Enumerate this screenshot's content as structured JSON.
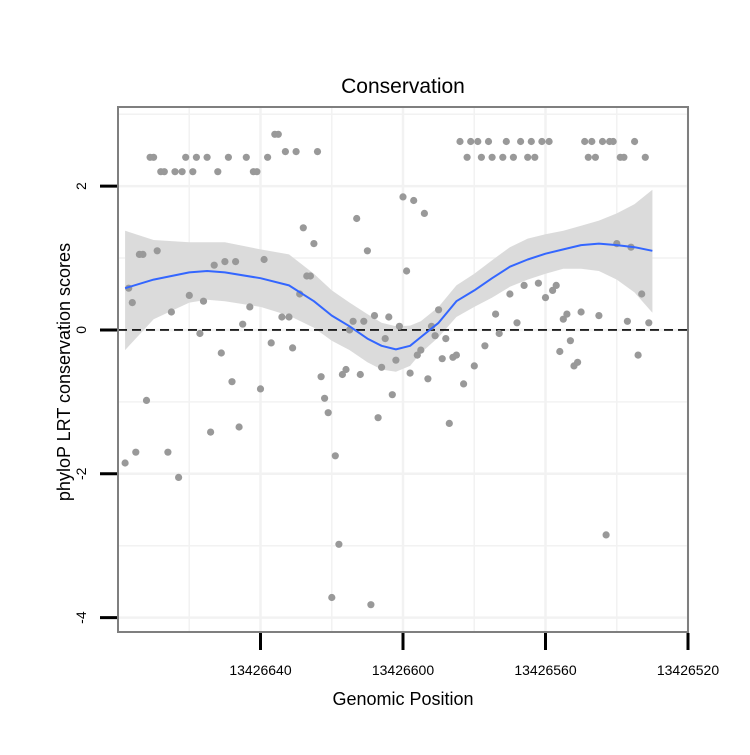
{
  "chart_data": {
    "type": "scatter",
    "title": "Conservation",
    "xlabel": "Genomic Position",
    "ylabel": "phyloP LRT conservation scores",
    "x_reversed": true,
    "xlim": [
      13426520,
      13426680
    ],
    "ylim": [
      -4.2,
      3.1
    ],
    "x_ticks": [
      13426640,
      13426600,
      13426560,
      13426520
    ],
    "x_tick_labels": [
      "13426640",
      "13426600",
      "13426560",
      "13426520"
    ],
    "y_ticks": [
      -4,
      -2,
      0,
      2
    ],
    "y_tick_labels": [
      "-4",
      "-2",
      "0",
      "2"
    ],
    "grid": true,
    "reference_line": {
      "y": 0,
      "style": "dashed",
      "color": "#000000"
    },
    "colors": {
      "points": "#999999",
      "smooth": "#3366ff",
      "ribbon": "#d9d9d9",
      "panel_border": "#7f7f7f",
      "grid": "#f2f2f2"
    },
    "series": [
      {
        "name": "phyloP LRT scores",
        "type": "scatter",
        "points": [
          [
            13426678,
            -1.85
          ],
          [
            13426677,
            0.58
          ],
          [
            13426676,
            0.38
          ],
          [
            13426675,
            -1.7
          ],
          [
            13426674,
            1.05
          ],
          [
            13426673,
            1.05
          ],
          [
            13426672,
            -0.98
          ],
          [
            13426671,
            2.4
          ],
          [
            13426670,
            2.4
          ],
          [
            13426669,
            1.1
          ],
          [
            13426668,
            2.2
          ],
          [
            13426667,
            2.2
          ],
          [
            13426666,
            -1.7
          ],
          [
            13426665,
            0.25
          ],
          [
            13426664,
            2.2
          ],
          [
            13426663,
            -2.05
          ],
          [
            13426662,
            2.2
          ],
          [
            13426661,
            2.4
          ],
          [
            13426660,
            0.48
          ],
          [
            13426659,
            2.2
          ],
          [
            13426658,
            2.4
          ],
          [
            13426657,
            -0.05
          ],
          [
            13426656,
            0.4
          ],
          [
            13426655,
            2.4
          ],
          [
            13426654,
            -1.42
          ],
          [
            13426653,
            0.9
          ],
          [
            13426652,
            2.2
          ],
          [
            13426651,
            -0.32
          ],
          [
            13426650,
            0.95
          ],
          [
            13426649,
            2.4
          ],
          [
            13426648,
            -0.72
          ],
          [
            13426647,
            0.95
          ],
          [
            13426646,
            -1.35
          ],
          [
            13426645,
            0.08
          ],
          [
            13426644,
            2.4
          ],
          [
            13426643,
            0.32
          ],
          [
            13426642,
            2.2
          ],
          [
            13426641,
            2.2
          ],
          [
            13426640,
            -0.82
          ],
          [
            13426639,
            0.98
          ],
          [
            13426638,
            2.4
          ],
          [
            13426637,
            -0.18
          ],
          [
            13426636,
            2.72
          ],
          [
            13426635,
            2.72
          ],
          [
            13426634,
            0.18
          ],
          [
            13426633,
            2.48
          ],
          [
            13426632,
            0.18
          ],
          [
            13426631,
            -0.25
          ],
          [
            13426630,
            2.48
          ],
          [
            13426629,
            0.5
          ],
          [
            13426628,
            1.42
          ],
          [
            13426627,
            0.75
          ],
          [
            13426626,
            0.75
          ],
          [
            13426625,
            1.2
          ],
          [
            13426624,
            2.48
          ],
          [
            13426623,
            -0.65
          ],
          [
            13426622,
            -0.95
          ],
          [
            13426621,
            -1.15
          ],
          [
            13426620,
            -3.72
          ],
          [
            13426619,
            -1.75
          ],
          [
            13426618,
            -2.98
          ],
          [
            13426617,
            -0.62
          ],
          [
            13426616,
            -0.55
          ],
          [
            13426615,
            0.0
          ],
          [
            13426614,
            0.12
          ],
          [
            13426613,
            1.55
          ],
          [
            13426612,
            -0.62
          ],
          [
            13426611,
            0.12
          ],
          [
            13426610,
            1.1
          ],
          [
            13426609,
            -3.82
          ],
          [
            13426608,
            0.2
          ],
          [
            13426607,
            -1.22
          ],
          [
            13426606,
            -0.52
          ],
          [
            13426605,
            -0.12
          ],
          [
            13426604,
            0.18
          ],
          [
            13426603,
            -0.9
          ],
          [
            13426602,
            -0.42
          ],
          [
            13426601,
            0.05
          ],
          [
            13426600,
            1.85
          ],
          [
            13426599,
            0.82
          ],
          [
            13426598,
            -0.6
          ],
          [
            13426597,
            1.8
          ],
          [
            13426596,
            -0.35
          ],
          [
            13426595,
            -0.28
          ],
          [
            13426594,
            1.62
          ],
          [
            13426593,
            -0.68
          ],
          [
            13426592,
            0.05
          ],
          [
            13426591,
            -0.08
          ],
          [
            13426590,
            0.28
          ],
          [
            13426589,
            -0.4
          ],
          [
            13426588,
            -0.12
          ],
          [
            13426587,
            -1.3
          ],
          [
            13426586,
            -0.38
          ],
          [
            13426585,
            -0.35
          ],
          [
            13426584,
            2.62
          ],
          [
            13426583,
            -0.75
          ],
          [
            13426582,
            2.4
          ],
          [
            13426581,
            2.62
          ],
          [
            13426580,
            -0.5
          ],
          [
            13426579,
            2.62
          ],
          [
            13426578,
            2.4
          ],
          [
            13426577,
            -0.22
          ],
          [
            13426576,
            2.62
          ],
          [
            13426575,
            2.4
          ],
          [
            13426574,
            0.22
          ],
          [
            13426573,
            -0.05
          ],
          [
            13426572,
            2.4
          ],
          [
            13426571,
            2.62
          ],
          [
            13426570,
            0.5
          ],
          [
            13426569,
            2.4
          ],
          [
            13426568,
            0.1
          ],
          [
            13426567,
            2.62
          ],
          [
            13426566,
            0.62
          ],
          [
            13426565,
            2.4
          ],
          [
            13426564,
            2.62
          ],
          [
            13426563,
            2.4
          ],
          [
            13426562,
            0.65
          ],
          [
            13426561,
            2.62
          ],
          [
            13426560,
            0.45
          ],
          [
            13426559,
            2.62
          ],
          [
            13426558,
            0.55
          ],
          [
            13426557,
            0.62
          ],
          [
            13426556,
            -0.3
          ],
          [
            13426555,
            0.15
          ],
          [
            13426554,
            0.22
          ],
          [
            13426553,
            -0.15
          ],
          [
            13426552,
            -0.5
          ],
          [
            13426551,
            -0.45
          ],
          [
            13426550,
            0.25
          ],
          [
            13426549,
            2.62
          ],
          [
            13426548,
            2.4
          ],
          [
            13426547,
            2.62
          ],
          [
            13426546,
            2.4
          ],
          [
            13426545,
            0.2
          ],
          [
            13426544,
            2.62
          ],
          [
            13426543,
            -2.85
          ],
          [
            13426542,
            2.62
          ],
          [
            13426541,
            2.62
          ],
          [
            13426540,
            1.2
          ],
          [
            13426539,
            2.4
          ],
          [
            13426538,
            2.4
          ],
          [
            13426537,
            0.12
          ],
          [
            13426536,
            1.15
          ],
          [
            13426535,
            2.62
          ],
          [
            13426534,
            -0.35
          ],
          [
            13426533,
            0.5
          ],
          [
            13426532,
            2.4
          ],
          [
            13426531,
            0.1
          ]
        ]
      },
      {
        "name": "loess fit",
        "type": "line",
        "points": [
          [
            13426678,
            0.58
          ],
          [
            13426670,
            0.7
          ],
          [
            13426660,
            0.8
          ],
          [
            13426655,
            0.82
          ],
          [
            13426650,
            0.8
          ],
          [
            13426640,
            0.72
          ],
          [
            13426632,
            0.62
          ],
          [
            13426625,
            0.4
          ],
          [
            13426620,
            0.2
          ],
          [
            13426615,
            0.05
          ],
          [
            13426610,
            -0.12
          ],
          [
            13426606,
            -0.22
          ],
          [
            13426602,
            -0.27
          ],
          [
            13426598,
            -0.22
          ],
          [
            13426595,
            -0.1
          ],
          [
            13426590,
            0.1
          ],
          [
            13426585,
            0.4
          ],
          [
            13426580,
            0.55
          ],
          [
            13426575,
            0.72
          ],
          [
            13426570,
            0.88
          ],
          [
            13426565,
            0.98
          ],
          [
            13426560,
            1.06
          ],
          [
            13426555,
            1.12
          ],
          [
            13426550,
            1.18
          ],
          [
            13426545,
            1.2
          ],
          [
            13426540,
            1.18
          ],
          [
            13426535,
            1.15
          ],
          [
            13426530,
            1.1
          ]
        ]
      },
      {
        "name": "confidence band",
        "type": "area",
        "x": [
          13426678,
          13426670,
          13426660,
          13426655,
          13426650,
          13426640,
          13426632,
          13426625,
          13426620,
          13426615,
          13426610,
          13426606,
          13426602,
          13426598,
          13426595,
          13426590,
          13426585,
          13426580,
          13426575,
          13426570,
          13426565,
          13426560,
          13426555,
          13426550,
          13426545,
          13426540,
          13426535,
          13426530
        ],
        "upper": [
          1.38,
          1.25,
          1.22,
          1.22,
          1.22,
          1.12,
          1.05,
          0.78,
          0.55,
          0.38,
          0.22,
          0.1,
          0.05,
          0.06,
          0.12,
          0.32,
          0.62,
          0.78,
          0.97,
          1.15,
          1.27,
          1.33,
          1.38,
          1.45,
          1.52,
          1.62,
          1.75,
          1.95
        ],
        "lower": [
          -0.28,
          0.15,
          0.38,
          0.42,
          0.4,
          0.32,
          0.2,
          0.03,
          -0.15,
          -0.28,
          -0.45,
          -0.55,
          -0.58,
          -0.5,
          -0.32,
          -0.1,
          0.18,
          0.32,
          0.45,
          0.6,
          0.7,
          0.78,
          0.85,
          0.85,
          0.82,
          0.7,
          0.52,
          0.24
        ]
      }
    ]
  }
}
